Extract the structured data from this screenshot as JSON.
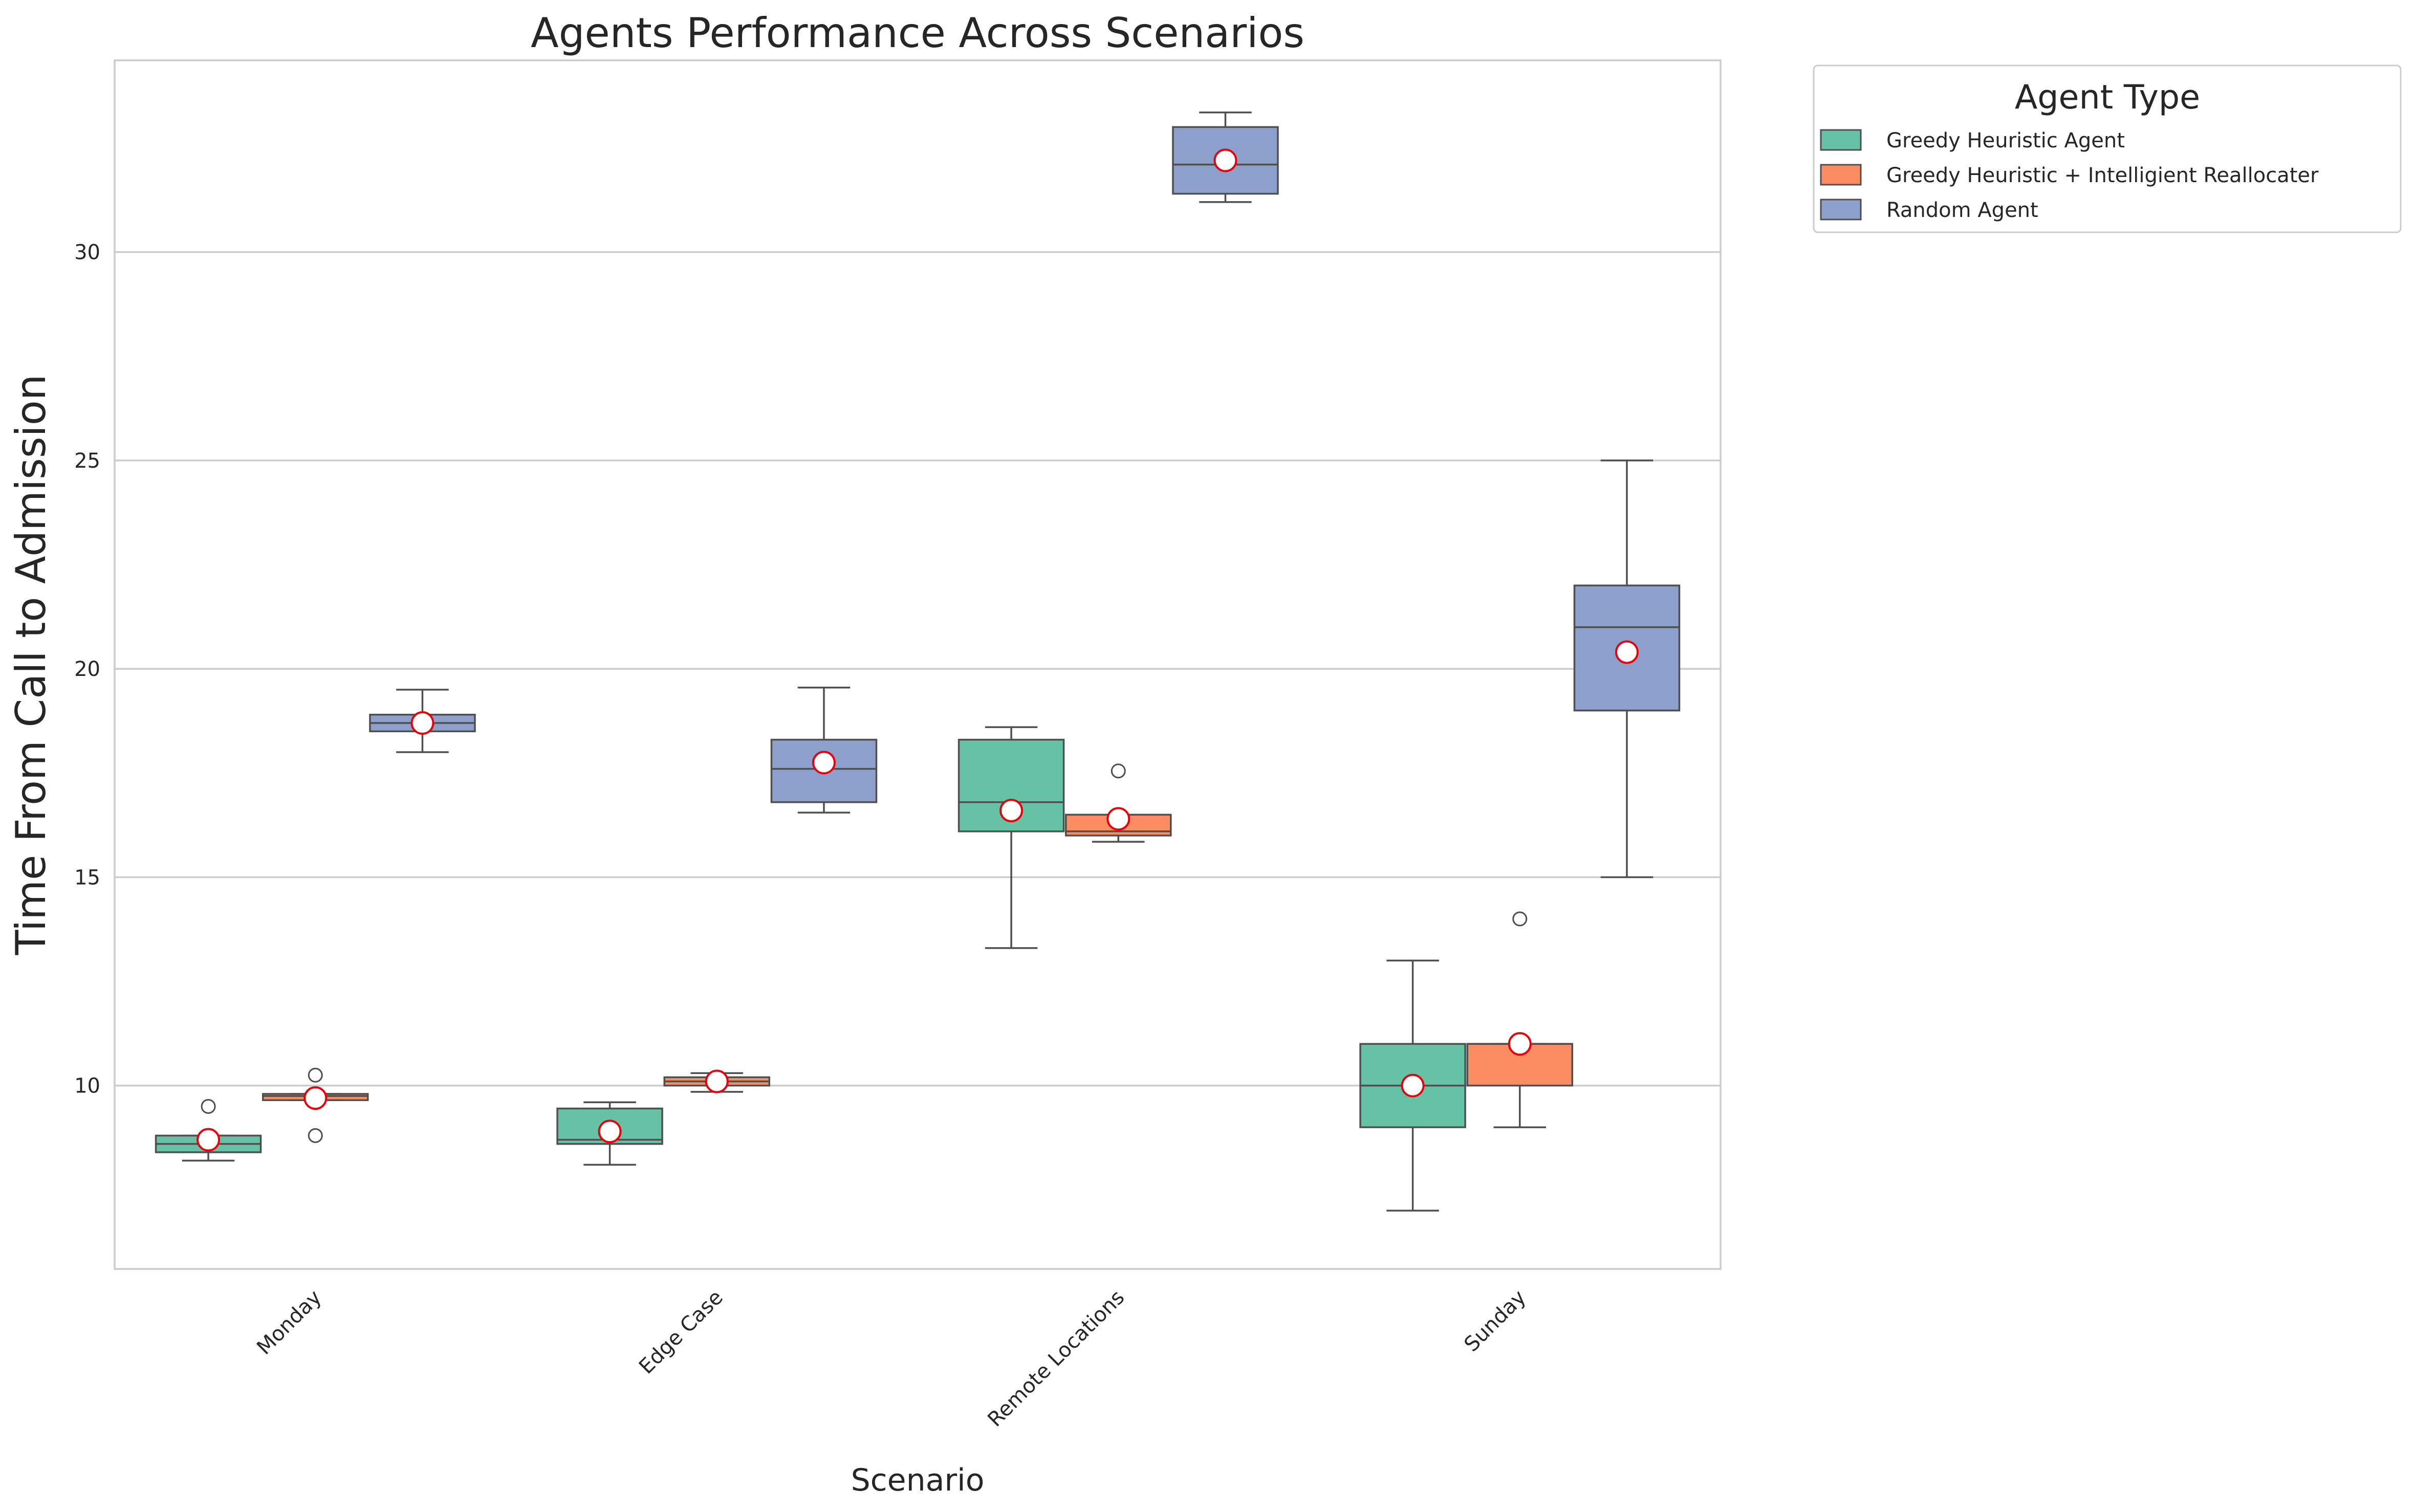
{
  "chart_data": {
    "type": "box",
    "title": "Agents Performance Across Scenarios",
    "xlabel": "Scenario",
    "ylabel": "Time From Call to Admission",
    "categories": [
      "Monday",
      "Edge Case",
      "Remote Locations",
      "Sunday"
    ],
    "ylim": [
      5.6,
      34.6
    ],
    "yticks": [
      10,
      15,
      20,
      25,
      30
    ],
    "grid": "horizontal",
    "legend": {
      "title": "Agent Type",
      "position": "outside upper right"
    },
    "series": [
      {
        "name": "Greedy Heuristic Agent",
        "color": "#66c2a5",
        "boxes": [
          {
            "whisker_low": 8.2,
            "q1": 8.4,
            "median": 8.6,
            "q3": 8.8,
            "whisker_high": 8.8,
            "mean": 8.7,
            "outliers": [
              9.5
            ]
          },
          {
            "whisker_low": 8.1,
            "q1": 8.6,
            "median": 8.7,
            "q3": 9.45,
            "whisker_high": 9.6,
            "mean": 8.9,
            "outliers": []
          },
          {
            "whisker_low": 13.3,
            "q1": 16.1,
            "median": 16.8,
            "q3": 18.3,
            "whisker_high": 18.6,
            "mean": 16.6,
            "outliers": []
          },
          {
            "whisker_low": 7.0,
            "q1": 9.0,
            "median": 10.0,
            "q3": 11.0,
            "whisker_high": 13.0,
            "mean": 10.0,
            "outliers": []
          }
        ]
      },
      {
        "name": "Greedy Heuristic + Intelligient Reallocater",
        "color": "#fc8d62",
        "boxes": [
          {
            "whisker_low": 9.65,
            "q1": 9.65,
            "median": 9.75,
            "q3": 9.8,
            "whisker_high": 9.8,
            "mean": 9.7,
            "outliers": [
              10.25,
              8.8
            ]
          },
          {
            "whisker_low": 9.85,
            "q1": 10.0,
            "median": 10.1,
            "q3": 10.2,
            "whisker_high": 10.3,
            "mean": 10.1,
            "outliers": []
          },
          {
            "whisker_low": 15.85,
            "q1": 16.0,
            "median": 16.1,
            "q3": 16.5,
            "whisker_high": 16.5,
            "mean": 16.4,
            "outliers": [
              17.55
            ]
          },
          {
            "whisker_low": 9.0,
            "q1": 10.0,
            "median": 11.0,
            "q3": 11.0,
            "whisker_high": 11.0,
            "mean": 11.0,
            "outliers": [
              14.0
            ]
          }
        ]
      },
      {
        "name": "Random Agent",
        "color": "#8da0cb",
        "boxes": [
          {
            "whisker_low": 18.0,
            "q1": 18.5,
            "median": 18.7,
            "q3": 18.9,
            "whisker_high": 19.5,
            "mean": 18.7,
            "outliers": []
          },
          {
            "whisker_low": 16.55,
            "q1": 16.8,
            "median": 17.6,
            "q3": 18.3,
            "whisker_high": 19.55,
            "mean": 17.75,
            "outliers": []
          },
          {
            "whisker_low": 31.2,
            "q1": 31.4,
            "median": 32.1,
            "q3": 33.0,
            "whisker_high": 33.35,
            "mean": 32.2,
            "outliers": []
          },
          {
            "whisker_low": 15.0,
            "q1": 19.0,
            "median": 21.0,
            "q3": 22.0,
            "whisker_high": 25.0,
            "mean": 20.4,
            "outliers": []
          }
        ]
      }
    ]
  }
}
